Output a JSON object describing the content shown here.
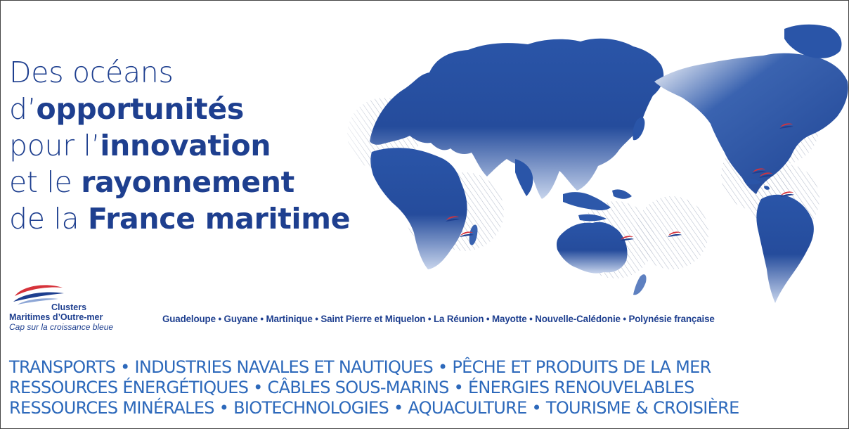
{
  "headline": {
    "line1": {
      "light": "Des océans"
    },
    "line2": {
      "light": "d’",
      "bold": "opportunités"
    },
    "line3": {
      "light": "pour l’",
      "bold": "innovation"
    },
    "line4": {
      "light": "et le ",
      "bold": "rayonnement"
    },
    "line5": {
      "light": "de la ",
      "bold": "France maritime"
    }
  },
  "logo": {
    "title_line1": "Clusters",
    "title_line2": "Maritimes d’Outre-mer",
    "tagline": "Cap sur la croissance bleue",
    "icon": "swoosh-logo-icon"
  },
  "territories": "Guadeloupe • Guyane • Martinique • Saint Pierre et Miquelon • La Réunion • Mayotte • Nouvelle-Calédonie • Polynésie française",
  "sectors": [
    "TRANSPORTS • INDUSTRIES NAVALES ET NAUTIQUES • PÊCHE ET PRODUITS DE LA MER",
    "RESSOURCES ÉNERGÉTIQUES • CÂBLES SOUS-MARINS • ÉNERGIES RENOUVELABLES",
    "RESSOURCES MINÉRALES • BIOTECHNOLOGIES • AQUACULTURE • TOURISME & CROISIÈRE"
  ],
  "colors": {
    "primary_blue": "#1e3f8f",
    "sector_blue": "#2d69bb",
    "accent_red": "#d6323a"
  },
  "map": {
    "icon": "world-map-icon",
    "territory_marker_icon": "swoosh-marker-icon"
  }
}
